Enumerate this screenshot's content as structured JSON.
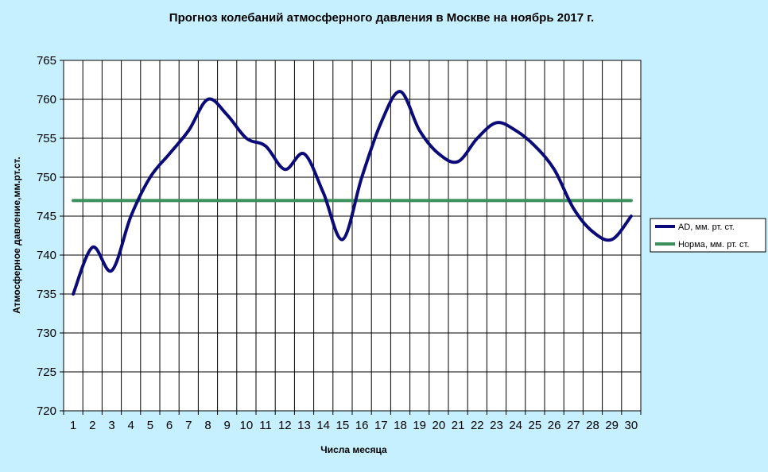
{
  "colors": {
    "background": "#c6f0ff",
    "plot_area": "#ffffff",
    "grid": "#000000",
    "series_ad": "#0a0a78",
    "series_norm": "#3a8f5a"
  },
  "chart_data": {
    "type": "line",
    "title": "Прогноз колебаний атмосферного давления в Москве на ноябрь 2017 г.",
    "xlabel": "Числа месяца",
    "ylabel": "Атмосферное давление,мм.рт.ст.",
    "x": [
      1,
      2,
      3,
      4,
      5,
      6,
      7,
      8,
      9,
      10,
      11,
      12,
      13,
      14,
      15,
      16,
      17,
      18,
      19,
      20,
      21,
      22,
      23,
      24,
      25,
      26,
      27,
      28,
      29,
      30
    ],
    "x_tick_labels": [
      "1",
      "2",
      "3",
      "4",
      "5",
      "6",
      "7",
      "8",
      "9",
      "10",
      "11",
      "12",
      "13",
      "14",
      "15",
      "16",
      "17",
      "18",
      "19",
      "20",
      "21",
      "22",
      "23",
      "24",
      "25",
      "26",
      "27",
      "28",
      "29",
      "30"
    ],
    "y_tick_labels": [
      "720",
      "725",
      "730",
      "735",
      "740",
      "745",
      "750",
      "755",
      "760",
      "765"
    ],
    "ylim": [
      720,
      765
    ],
    "grid": true,
    "legend_position": "right",
    "series": [
      {
        "name": "AD, мм. рт. ст.",
        "values": [
          735,
          741,
          738,
          745,
          750,
          753,
          756,
          760,
          758,
          755,
          754,
          751,
          753,
          748,
          742,
          750,
          757,
          761,
          756,
          753,
          752,
          755,
          757,
          756,
          754,
          751,
          746,
          743,
          742,
          745
        ]
      },
      {
        "name": "Норма, мм. рт. ст.",
        "values": [
          747,
          747,
          747,
          747,
          747,
          747,
          747,
          747,
          747,
          747,
          747,
          747,
          747,
          747,
          747,
          747,
          747,
          747,
          747,
          747,
          747,
          747,
          747,
          747,
          747,
          747,
          747,
          747,
          747,
          747
        ]
      }
    ]
  }
}
